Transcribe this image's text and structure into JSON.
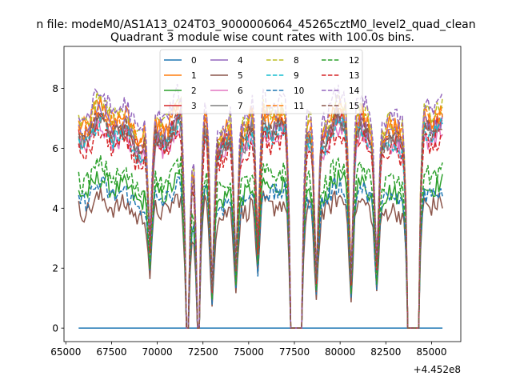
{
  "chart_data": {
    "type": "line",
    "suptitle": "n file: modeM0/AS1A13_024T03_9000006064_45265cztM0_level2_quad_clean",
    "title": "Quadrant 3 module wise count rates with 100.0s bins.",
    "xlabel": "",
    "ylabel": "",
    "x_offset_label": "+4.452e8",
    "xlim": [
      64900,
      86600
    ],
    "ylim": [
      -0.45,
      9.4
    ],
    "x_ticks": [
      65000,
      67500,
      70000,
      72500,
      75000,
      77500,
      80000,
      82500,
      85000
    ],
    "x_tick_labels": [
      "65000",
      "67500",
      "70000",
      "72500",
      "75000",
      "77500",
      "80000",
      "82500",
      "85000"
    ],
    "y_ticks": [
      0,
      2,
      4,
      6,
      8
    ],
    "y_tick_labels": [
      "0",
      "2",
      "4",
      "6",
      "8"
    ],
    "x_range": [
      65700,
      85600
    ],
    "bin_width_s": 100,
    "grid": false,
    "legend": {
      "placement": "top-center",
      "columns": 4
    },
    "dip_windows": [
      [
        71550,
        71750
      ],
      [
        72150,
        72300
      ],
      [
        77300,
        77900
      ],
      [
        83700,
        84300
      ]
    ],
    "partial_dips": [
      [
        73000,
        1.3
      ],
      [
        69600,
        2.8
      ],
      [
        78700,
        1.6
      ],
      [
        80600,
        1.5
      ],
      [
        82000,
        2.2
      ],
      [
        74300,
        2.0
      ],
      [
        75500,
        2.5
      ]
    ],
    "series": [
      {
        "name": "0",
        "color": "#1f77b4",
        "style": "solid",
        "values": "constant",
        "level": 0.0
      },
      {
        "name": "1",
        "color": "#ff7f0e",
        "style": "solid",
        "level": 6.9
      },
      {
        "name": "2",
        "color": "#2ca02c",
        "style": "solid",
        "level": 4.6
      },
      {
        "name": "3",
        "color": "#d62728",
        "style": "solid",
        "level": 6.5
      },
      {
        "name": "4",
        "color": "#9467bd",
        "style": "solid",
        "level": 6.6
      },
      {
        "name": "5",
        "color": "#8c564b",
        "style": "solid",
        "level": 4.0
      },
      {
        "name": "6",
        "color": "#e377c2",
        "style": "solid",
        "level": 6.2
      },
      {
        "name": "7",
        "color": "#7f7f7f",
        "style": "solid",
        "level": 6.4
      },
      {
        "name": "8",
        "color": "#bcbd22",
        "style": "dashed",
        "level": 7.0
      },
      {
        "name": "9",
        "color": "#17becf",
        "style": "dashed",
        "level": 6.3
      },
      {
        "name": "10",
        "color": "#1f77b4",
        "style": "dashed",
        "level": 4.4
      },
      {
        "name": "11",
        "color": "#ff7f0e",
        "style": "dashed",
        "level": 6.8
      },
      {
        "name": "12",
        "color": "#2ca02c",
        "style": "dashed",
        "level": 5.0
      },
      {
        "name": "13",
        "color": "#d62728",
        "style": "dashed",
        "level": 6.0
      },
      {
        "name": "14",
        "color": "#9467bd",
        "style": "dashed",
        "level": 7.2
      },
      {
        "name": "15",
        "color": "#8c564b",
        "style": "dashed",
        "level": 6.5
      }
    ]
  }
}
